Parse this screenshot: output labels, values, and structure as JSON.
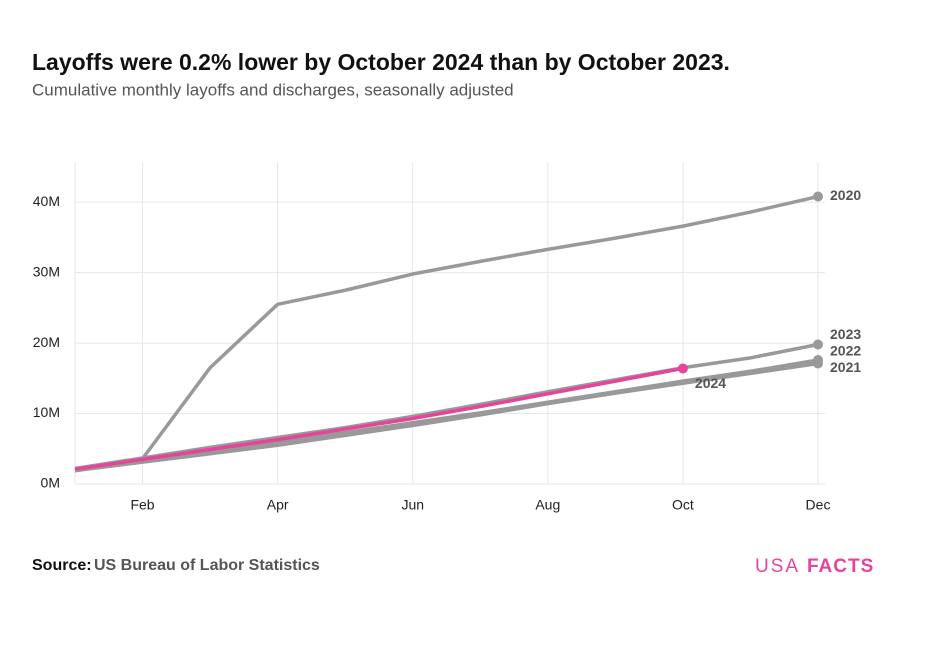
{
  "chart_data": {
    "type": "line",
    "title": "Layoffs were 0.2% lower by October 2024 than by October 2023.",
    "subtitle": "Cumulative monthly layoffs and discharges, seasonally adjusted",
    "categories": [
      null,
      "Feb",
      null,
      "Apr",
      null,
      "Jun",
      null,
      "Aug",
      null,
      "Oct",
      null,
      "Dec"
    ],
    "series": [
      {
        "name": "2020",
        "color": "#999999",
        "values": [
          2.0,
          3.6,
          16.5,
          25.5,
          27.5,
          29.8,
          31.6,
          33.3,
          34.9,
          36.6,
          38.6,
          40.8
        ]
      },
      {
        "name": "2021",
        "color": "#999999",
        "values": [
          1.9,
          3.1,
          4.3,
          5.5,
          6.9,
          8.3,
          9.8,
          11.4,
          12.9,
          14.3,
          15.7,
          17.1
        ]
      },
      {
        "name": "2022",
        "color": "#999999",
        "values": [
          1.9,
          3.2,
          4.6,
          6.0,
          7.3,
          8.7,
          10.1,
          11.6,
          13.1,
          14.6,
          16.0,
          17.6
        ]
      },
      {
        "name": "2023",
        "color": "#999999",
        "values": [
          2.2,
          3.7,
          5.2,
          6.6,
          8.0,
          9.6,
          11.3,
          13.1,
          14.8,
          16.5,
          17.9,
          19.8
        ]
      },
      {
        "name": "2024",
        "color": "#e6449b",
        "values": [
          2.1,
          3.5,
          4.9,
          6.3,
          7.8,
          9.3,
          11.0,
          12.8,
          14.6,
          16.4,
          null,
          null
        ]
      }
    ],
    "ylim": [
      0,
      45.7
    ],
    "yticks": [
      {
        "value": 0,
        "label": "0M"
      },
      {
        "value": 10,
        "label": "10M"
      },
      {
        "value": 20,
        "label": "20M"
      },
      {
        "value": 30,
        "label": "30M"
      },
      {
        "value": 40,
        "label": "40M"
      }
    ],
    "grid": true,
    "source_label": "Source:",
    "source": "US Bureau of Labor Statistics",
    "logo": [
      "USA",
      "FACTS"
    ]
  }
}
